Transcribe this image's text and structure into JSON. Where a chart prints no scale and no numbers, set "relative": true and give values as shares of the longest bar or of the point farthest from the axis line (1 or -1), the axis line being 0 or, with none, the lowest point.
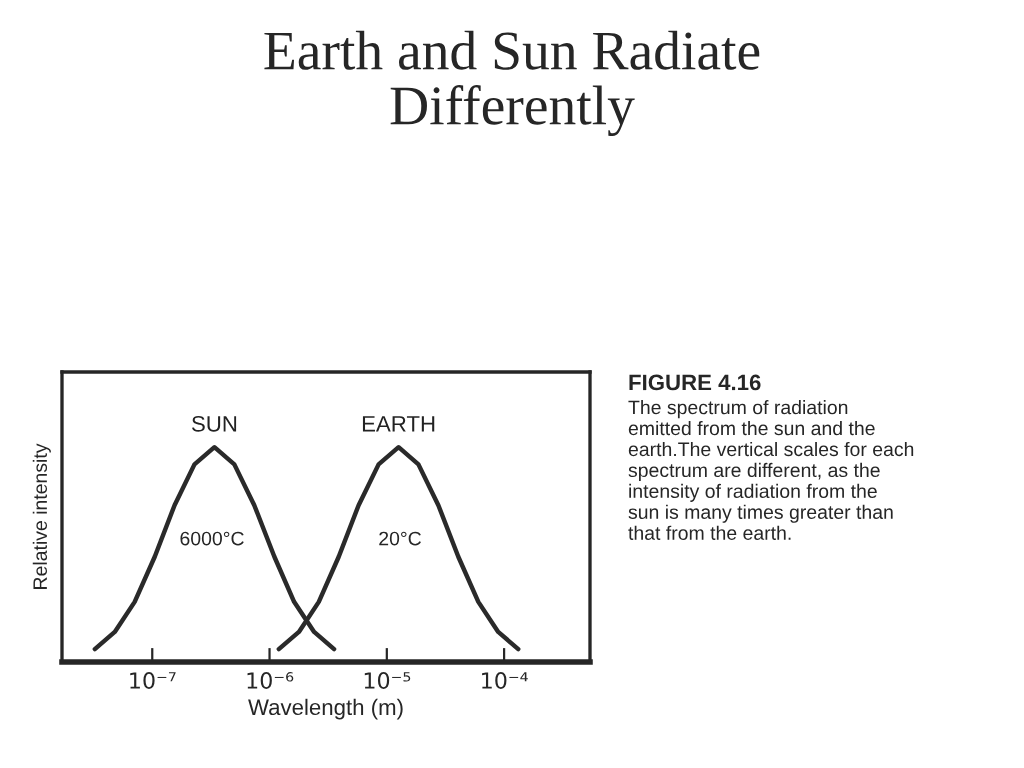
{
  "chart_data": {
    "type": "line",
    "title": "Earth and Sun Radiate\nDifferently",
    "xlabel": "Wavelength (m)",
    "ylabel": "Relative intensity",
    "relative": true,
    "log": "x",
    "xlim": [
      1.7e-08,
      0.00054
    ],
    "xticks": [
      {
        "value": 1e-07,
        "label": "10⁻⁷"
      },
      {
        "value": 1e-06,
        "label": "10⁻⁶"
      },
      {
        "value": 1e-05,
        "label": "10⁻⁵"
      },
      {
        "value": 0.0001,
        "label": "10⁻⁴"
      }
    ],
    "grid": false,
    "legend": false,
    "marker": "none",
    "line_style": "solid",
    "series": [
      {
        "name": "SUN",
        "color": "#2a2a2a",
        "x": [
          3.24e-08,
          4.79e-08,
          7.08e-08,
          1.05e-07,
          1.55e-07,
          2.29e-07,
          3.39e-07,
          5.01e-07,
          7.41e-07,
          1.1e-06,
          1.62e-06,
          2.4e-06,
          3.55e-06
        ],
        "values": [
          0.06,
          0.14,
          0.28,
          0.49,
          0.73,
          0.92,
          1,
          0.92,
          0.73,
          0.49,
          0.28,
          0.14,
          0.06
        ]
      },
      {
        "name": "EARTH",
        "color": "#2a2a2a",
        "x": [
          1.2e-06,
          1.78e-06,
          2.63e-06,
          3.89e-06,
          5.75e-06,
          8.51e-06,
          1.26e-05,
          1.86e-05,
          2.75e-05,
          4.07e-05,
          6.03e-05,
          8.91e-05,
          0.000132
        ],
        "values": [
          0.06,
          0.14,
          0.28,
          0.49,
          0.73,
          0.92,
          1,
          0.92,
          0.73,
          0.49,
          0.28,
          0.14,
          0.06
        ]
      }
    ],
    "annotations": [
      "6000°C",
      "20°C",
      "FIGURE 4.16",
      "The spectrum of radiation\nemitted from the sun and the\nearth.The vertical scales for each\nspectrum are different, as the\nintensity of radiation from the\nsun is many times greater than\nthat from the earth."
    ]
  }
}
